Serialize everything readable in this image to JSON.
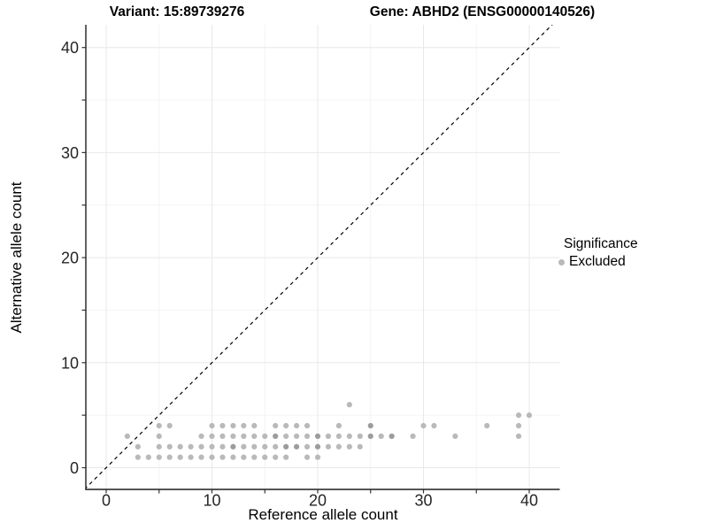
{
  "titles": {
    "variant": "Variant: 15:89739276",
    "gene": "Gene: ABHD2 (ENSG00000140526)"
  },
  "axes": {
    "x": {
      "label": "Reference allele count",
      "tick_labels": [
        "0",
        "10",
        "20",
        "30",
        "40"
      ]
    },
    "y": {
      "label": "Alternative allele count",
      "tick_labels": [
        "0",
        "10",
        "20",
        "30",
        "40"
      ]
    }
  },
  "legend": {
    "title": "Significance",
    "items": [
      {
        "label": "Excluded",
        "color": "#b9b9b9"
      }
    ]
  },
  "colors": {
    "point": "#b9b9b9",
    "point_overlap": "#9c9c9c",
    "grid_major": "#e8e8e8",
    "grid_minor": "#f4f4f4",
    "axis_line": "#1f1f1f",
    "tick_mark": "#333333",
    "tick_text": "#262626",
    "identity_line": "#000000",
    "background": "#ffffff"
  },
  "chart_data": {
    "type": "scatter",
    "title": "Variant: 15:89739276   |   Gene: ABHD2 (ENSG00000140526)",
    "xlabel": "Reference allele count",
    "ylabel": "Alternative allele count",
    "xlim": [
      -2,
      43
    ],
    "ylim": [
      -2,
      42
    ],
    "x_major_ticks": [
      0,
      10,
      20,
      30,
      40
    ],
    "x_minor_ticks": [
      5,
      15,
      25,
      35
    ],
    "y_major_ticks": [
      0,
      10,
      20,
      30,
      40
    ],
    "y_minor_ticks": [
      5,
      15,
      25,
      35
    ],
    "grid": "major and minor gridlines, no top/right border",
    "legend_position": "right",
    "reference_line": {
      "kind": "identity",
      "slope": 1,
      "intercept": 0,
      "linestyle": "dashed"
    },
    "series": [
      {
        "name": "Excluded",
        "marker": "circle",
        "note": "third element 2 marks visibly darker (overplotted) points",
        "points": [
          [
            2,
            3
          ],
          [
            3,
            1
          ],
          [
            3,
            2
          ],
          [
            4,
            1
          ],
          [
            5,
            1
          ],
          [
            5,
            2
          ],
          [
            5,
            3
          ],
          [
            5,
            4
          ],
          [
            6,
            1
          ],
          [
            6,
            2
          ],
          [
            6,
            4
          ],
          [
            7,
            1
          ],
          [
            7,
            2
          ],
          [
            8,
            1
          ],
          [
            8,
            2
          ],
          [
            9,
            1
          ],
          [
            9,
            2
          ],
          [
            9,
            3
          ],
          [
            10,
            1
          ],
          [
            10,
            2
          ],
          [
            10,
            3
          ],
          [
            10,
            4
          ],
          [
            11,
            1
          ],
          [
            11,
            2
          ],
          [
            11,
            3
          ],
          [
            11,
            4
          ],
          [
            12,
            1
          ],
          [
            12,
            2,
            2
          ],
          [
            12,
            3
          ],
          [
            12,
            4
          ],
          [
            13,
            1
          ],
          [
            13,
            2
          ],
          [
            13,
            3
          ],
          [
            13,
            4
          ],
          [
            14,
            1
          ],
          [
            14,
            2
          ],
          [
            14,
            3
          ],
          [
            14,
            4
          ],
          [
            15,
            1
          ],
          [
            15,
            2
          ],
          [
            15,
            3
          ],
          [
            16,
            1
          ],
          [
            16,
            2
          ],
          [
            16,
            3,
            2
          ],
          [
            16,
            4
          ],
          [
            17,
            1
          ],
          [
            17,
            2,
            2
          ],
          [
            17,
            3
          ],
          [
            17,
            4
          ],
          [
            18,
            2,
            2
          ],
          [
            18,
            3
          ],
          [
            18,
            4
          ],
          [
            19,
            1
          ],
          [
            19,
            2
          ],
          [
            19,
            3
          ],
          [
            19,
            4
          ],
          [
            20,
            1
          ],
          [
            20,
            2,
            2
          ],
          [
            20,
            3,
            2
          ],
          [
            21,
            2
          ],
          [
            21,
            3
          ],
          [
            22,
            2
          ],
          [
            22,
            3
          ],
          [
            22,
            4
          ],
          [
            23,
            2
          ],
          [
            23,
            3
          ],
          [
            23,
            6
          ],
          [
            24,
            2
          ],
          [
            24,
            3
          ],
          [
            25,
            3,
            2
          ],
          [
            25,
            4,
            2
          ],
          [
            26,
            3
          ],
          [
            27,
            3,
            2
          ],
          [
            29,
            3
          ],
          [
            30,
            4
          ],
          [
            31,
            4
          ],
          [
            33,
            3
          ],
          [
            36,
            4
          ],
          [
            39,
            3
          ],
          [
            39,
            4
          ],
          [
            39,
            5
          ],
          [
            40,
            5
          ]
        ]
      }
    ]
  }
}
